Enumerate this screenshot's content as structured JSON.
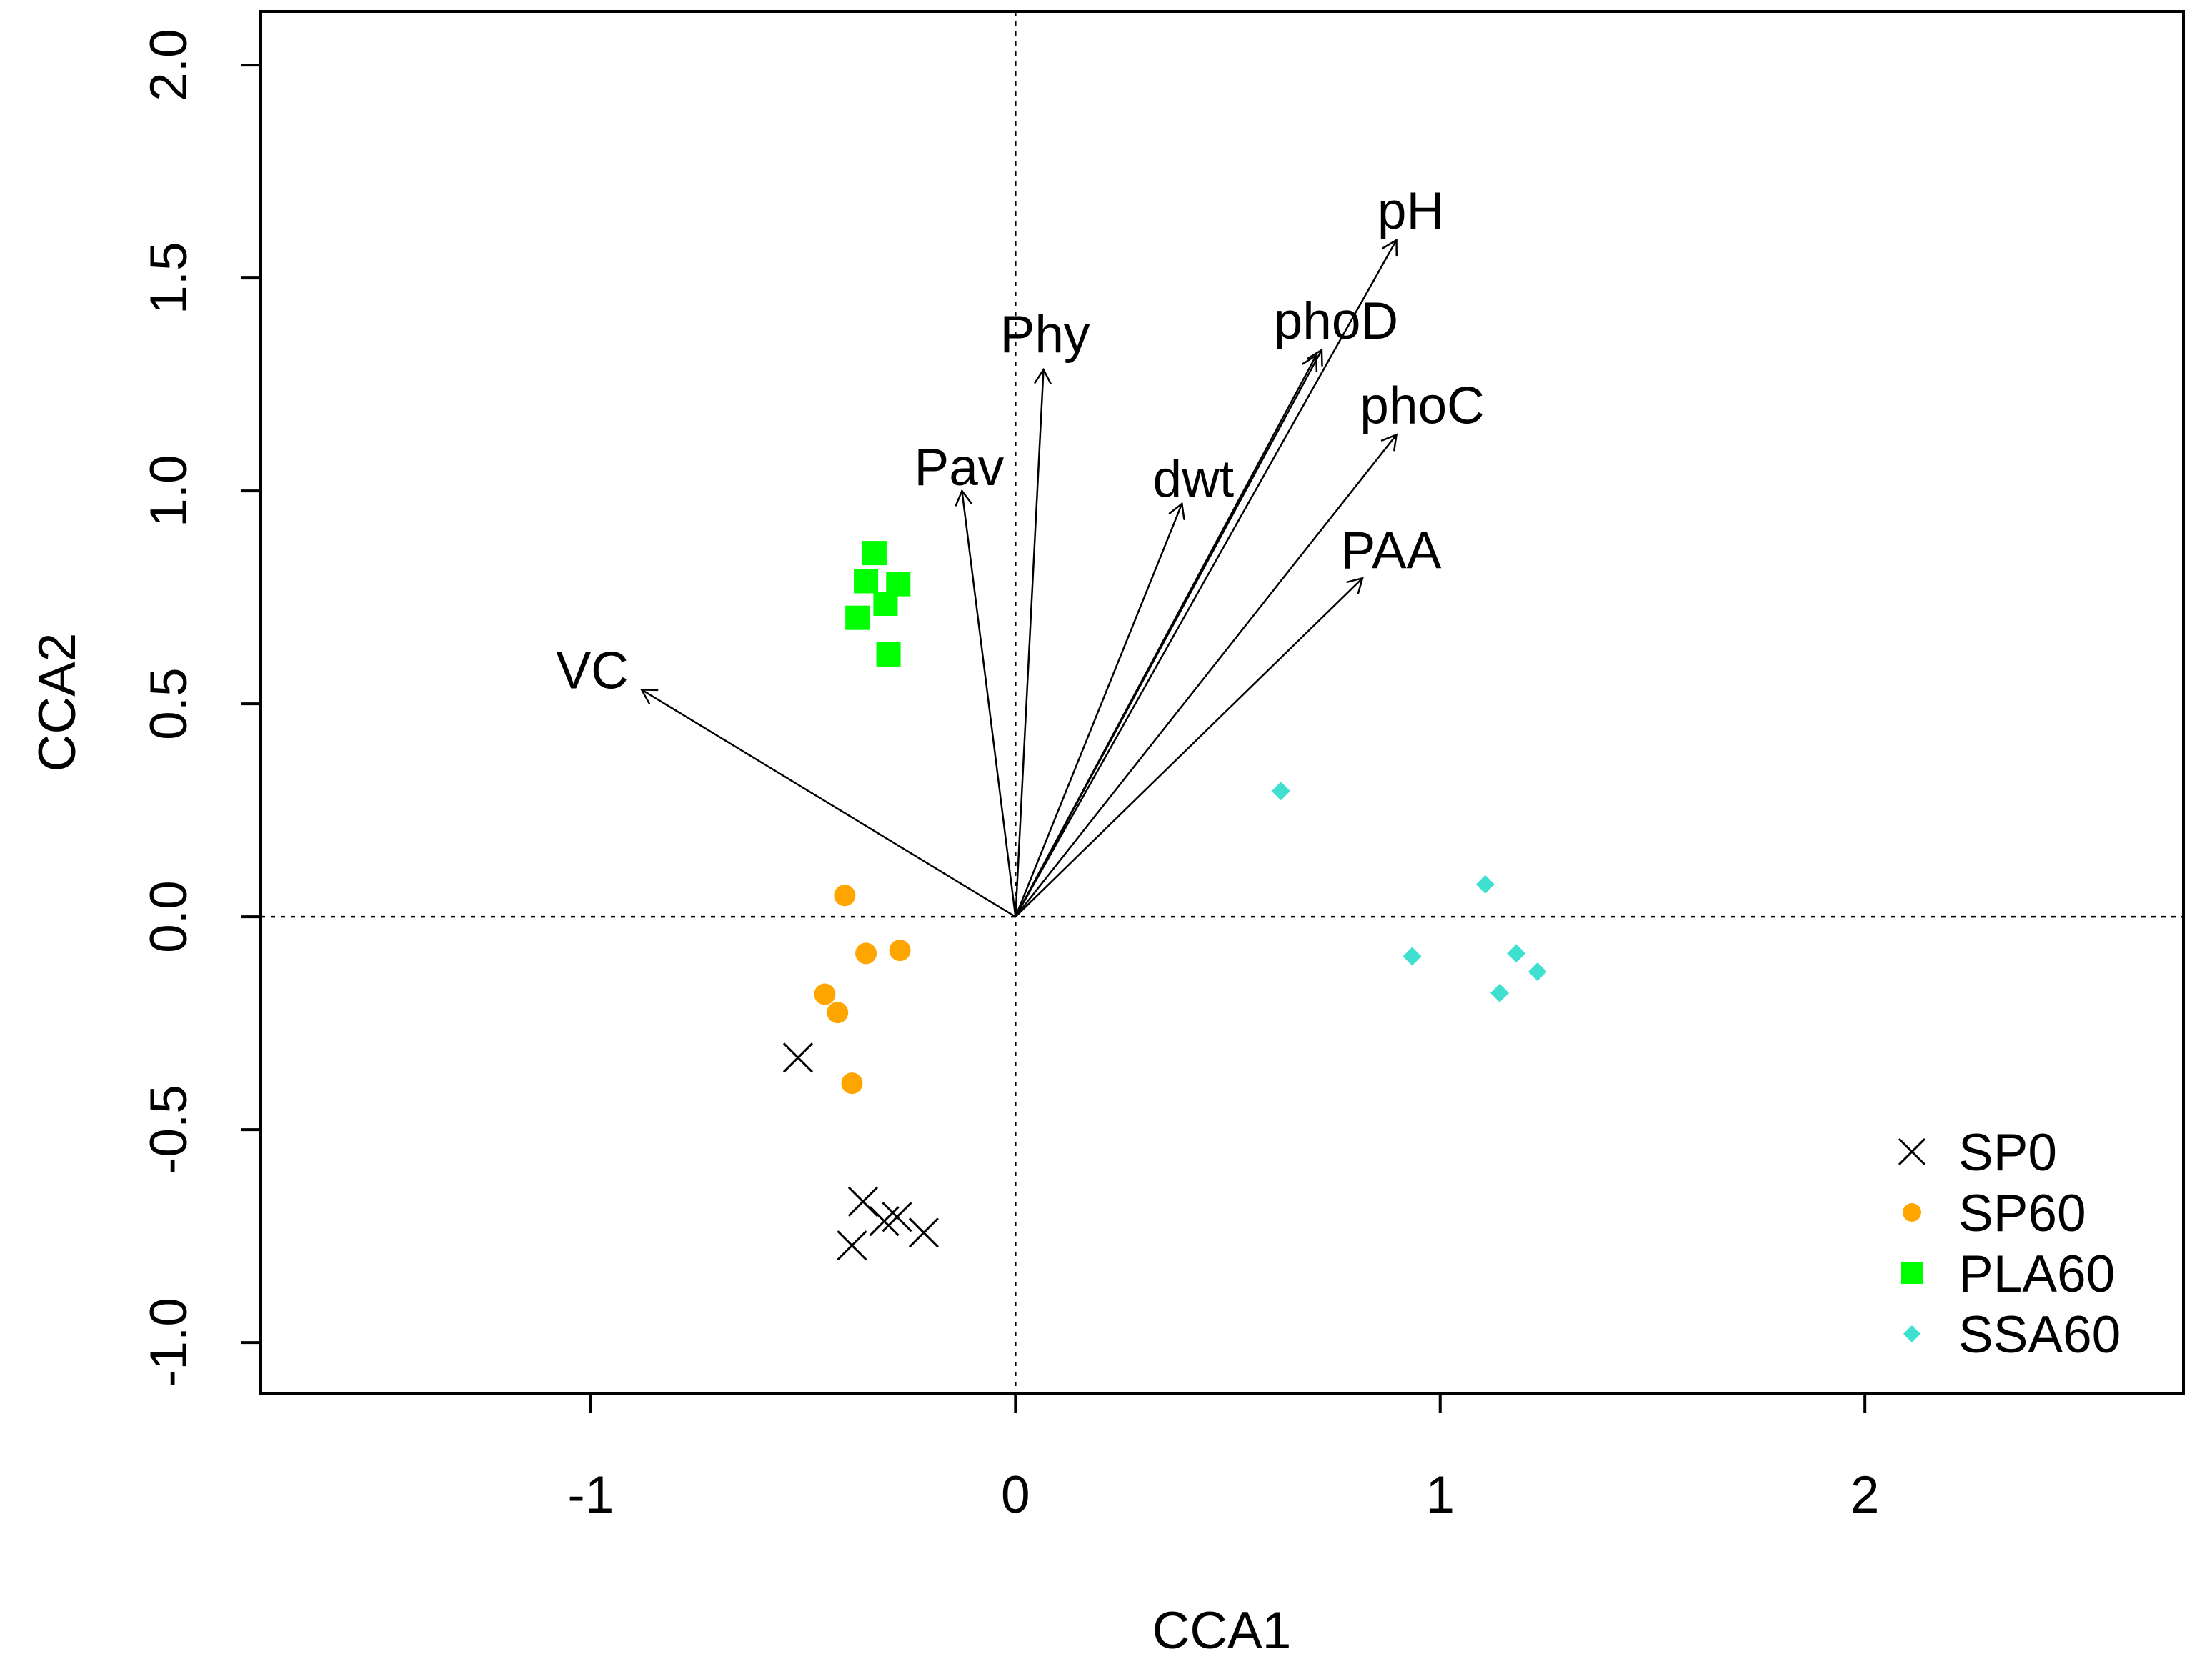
{
  "chart_data": {
    "type": "scatter",
    "xlabel": "CCA1",
    "ylabel": "CCA2",
    "xlim": [
      -1.777,
      2.75
    ],
    "ylim": [
      -1.119,
      2.126
    ],
    "xticks": [
      {
        "value": -1,
        "label": "-1"
      },
      {
        "value": 0,
        "label": "0"
      },
      {
        "value": 1,
        "label": "1"
      },
      {
        "value": 2,
        "label": "2"
      }
    ],
    "yticks": [
      {
        "value": -1.0,
        "label": "-1.0"
      },
      {
        "value": -0.5,
        "label": "-0.5"
      },
      {
        "value": 0.0,
        "label": "0.0"
      },
      {
        "value": 0.5,
        "label": "0.5"
      },
      {
        "value": 1.0,
        "label": "1.0"
      },
      {
        "value": 1.5,
        "label": "1.5"
      },
      {
        "value": 2.0,
        "label": "2.0"
      }
    ],
    "reference_lines": {
      "x": 0,
      "y": 0
    },
    "series": [
      {
        "name": "SP0",
        "marker": "x",
        "color": "#000000",
        "points": [
          {
            "x": -0.512,
            "y": -0.331
          },
          {
            "x": -0.359,
            "y": -0.669
          },
          {
            "x": -0.309,
            "y": -0.715
          },
          {
            "x": -0.279,
            "y": -0.705
          },
          {
            "x": -0.216,
            "y": -0.742
          },
          {
            "x": -0.385,
            "y": -0.772
          }
        ]
      },
      {
        "name": "SP60",
        "marker": "circle",
        "color": "#FFA500",
        "points": [
          {
            "x": -0.402,
            "y": 0.05
          },
          {
            "x": -0.352,
            "y": -0.086
          },
          {
            "x": -0.272,
            "y": -0.079
          },
          {
            "x": -0.449,
            "y": -0.182
          },
          {
            "x": -0.419,
            "y": -0.225
          },
          {
            "x": -0.385,
            "y": -0.391
          }
        ]
      },
      {
        "name": "PLA60",
        "marker": "square",
        "color": "#00FF00",
        "points": [
          {
            "x": -0.332,
            "y": 0.854
          },
          {
            "x": -0.352,
            "y": 0.788
          },
          {
            "x": -0.276,
            "y": 0.781
          },
          {
            "x": -0.306,
            "y": 0.735
          },
          {
            "x": -0.372,
            "y": 0.702
          },
          {
            "x": -0.299,
            "y": 0.616
          }
        ]
      },
      {
        "name": "SSA60",
        "marker": "diamond",
        "color": "#40E0D0",
        "points": [
          {
            "x": 0.625,
            "y": 0.295
          },
          {
            "x": 1.106,
            "y": 0.076
          },
          {
            "x": 0.934,
            "y": -0.093
          },
          {
            "x": 1.179,
            "y": -0.086
          },
          {
            "x": 1.229,
            "y": -0.129
          },
          {
            "x": 1.14,
            "y": -0.179
          }
        ]
      }
    ],
    "arrows": [
      {
        "label": "VC",
        "x": -0.88,
        "y": 0.533
      },
      {
        "label": "Pav",
        "x": -0.126,
        "y": 1.0
      },
      {
        "label": "Phy",
        "x": 0.066,
        "y": 1.285
      },
      {
        "label": "dwt",
        "x": 0.392,
        "y": 0.97
      },
      {
        "label": "phoD",
        "x": 0.721,
        "y": 1.331
      },
      {
        "x": 0.708,
        "y": 1.318
      },
      {
        "label": "pH",
        "x": 0.897,
        "y": 1.589
      },
      {
        "label": "phoC",
        "x": 0.897,
        "y": 1.132
      },
      {
        "label": "PAA",
        "x": 0.817,
        "y": 0.795
      }
    ],
    "legend": {
      "position": "bottom-right"
    }
  }
}
